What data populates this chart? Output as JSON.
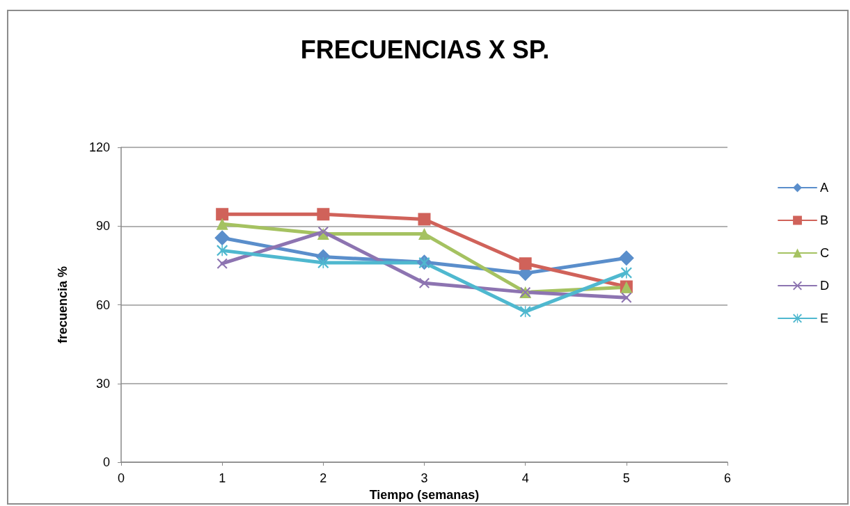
{
  "chart_data": {
    "type": "line",
    "title": "FRECUENCIAS X SP.",
    "xlabel": "Tiempo (semanas)",
    "ylabel": "frecuencia %",
    "x": [
      1,
      2,
      3,
      4,
      5
    ],
    "series": [
      {
        "name": "A",
        "color": "#5a8ecb",
        "marker": "diamond",
        "values": [
          85.5,
          78.3,
          76.2,
          72,
          77.8
        ]
      },
      {
        "name": "B",
        "color": "#d0625a",
        "marker": "square",
        "values": [
          94.5,
          94.5,
          92.6,
          75.7,
          66.9
        ]
      },
      {
        "name": "C",
        "color": "#a5c261",
        "marker": "triangle",
        "values": [
          90.8,
          87,
          87,
          64.8,
          66.7
        ]
      },
      {
        "name": "D",
        "color": "#8d74b1",
        "marker": "cross",
        "values": [
          75.7,
          87.8,
          68.3,
          64.8,
          62.7
        ]
      },
      {
        "name": "E",
        "color": "#4fb8cf",
        "marker": "star",
        "values": [
          80.7,
          76,
          76,
          57.4,
          72.2
        ]
      }
    ],
    "xlim": [
      0,
      6
    ],
    "xticks": [
      0,
      1,
      2,
      3,
      4,
      5,
      6
    ],
    "ylim": [
      0,
      120
    ],
    "yticks": [
      0,
      30,
      60,
      90,
      120
    ],
    "grid": "y",
    "legend": "right",
    "line_style": "solid"
  }
}
